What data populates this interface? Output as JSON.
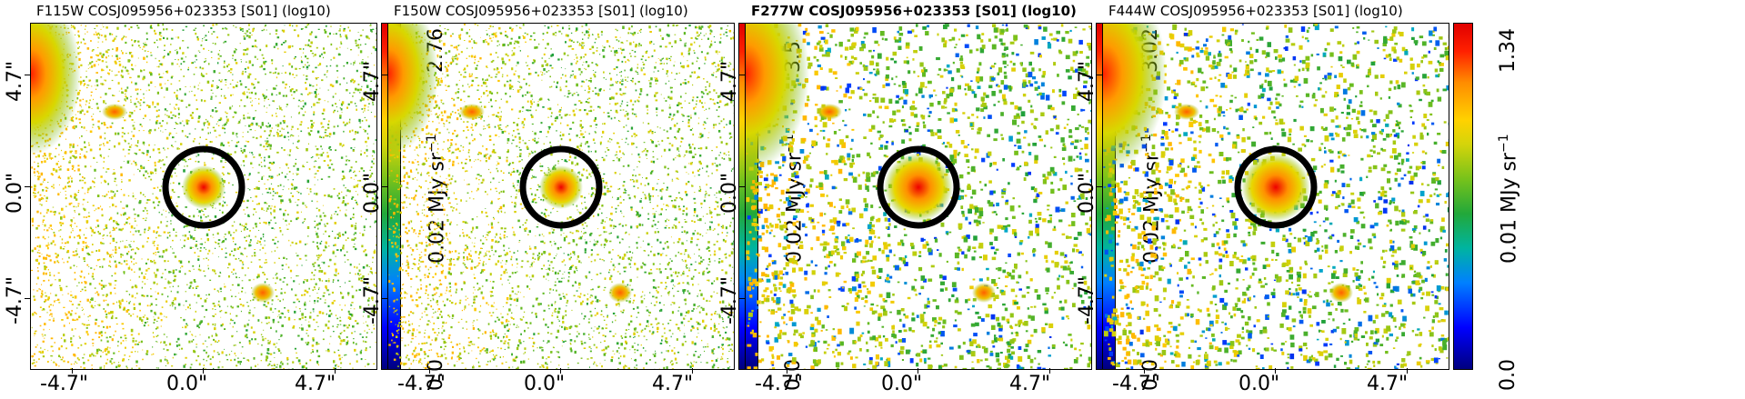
{
  "panels": [
    {
      "title": "F115W COSJ095956+023353 [S01] (log10)",
      "bold": false,
      "cbar_max": "2.76",
      "cbar_mid": "0.02",
      "cbar_min": "0.0",
      "cbar_unit": "MJy sr",
      "cbar_unit_exp": "−1",
      "noise": "sparse"
    },
    {
      "title": "F150W COSJ095956+023353 [S01] (log10)",
      "bold": false,
      "cbar_max": "3.5",
      "cbar_mid": "0.02",
      "cbar_min": "0.0",
      "cbar_unit": "MJy sr",
      "cbar_unit_exp": "−1",
      "noise": "sparse"
    },
    {
      "title": "F277W COSJ095956+023353 [S01] (log10)",
      "bold": true,
      "cbar_max": "3.02",
      "cbar_mid": "0.02",
      "cbar_min": "0.0",
      "cbar_unit": "MJy sr",
      "cbar_unit_exp": "−1",
      "noise": "blobby"
    },
    {
      "title": "F444W COSJ095956+023353 [S01] (log10)",
      "bold": false,
      "cbar_max": "1.34",
      "cbar_mid": "0.01",
      "cbar_min": "0.0",
      "cbar_unit": "MJy sr",
      "cbar_unit_exp": "−1",
      "noise": "blobby"
    }
  ],
  "axes": {
    "x_ticks": [
      "-4.7\"",
      "0.0\"",
      "4.7\""
    ],
    "y_ticks": [
      "4.7\"",
      "0.0\"",
      "-4.7\""
    ]
  }
}
